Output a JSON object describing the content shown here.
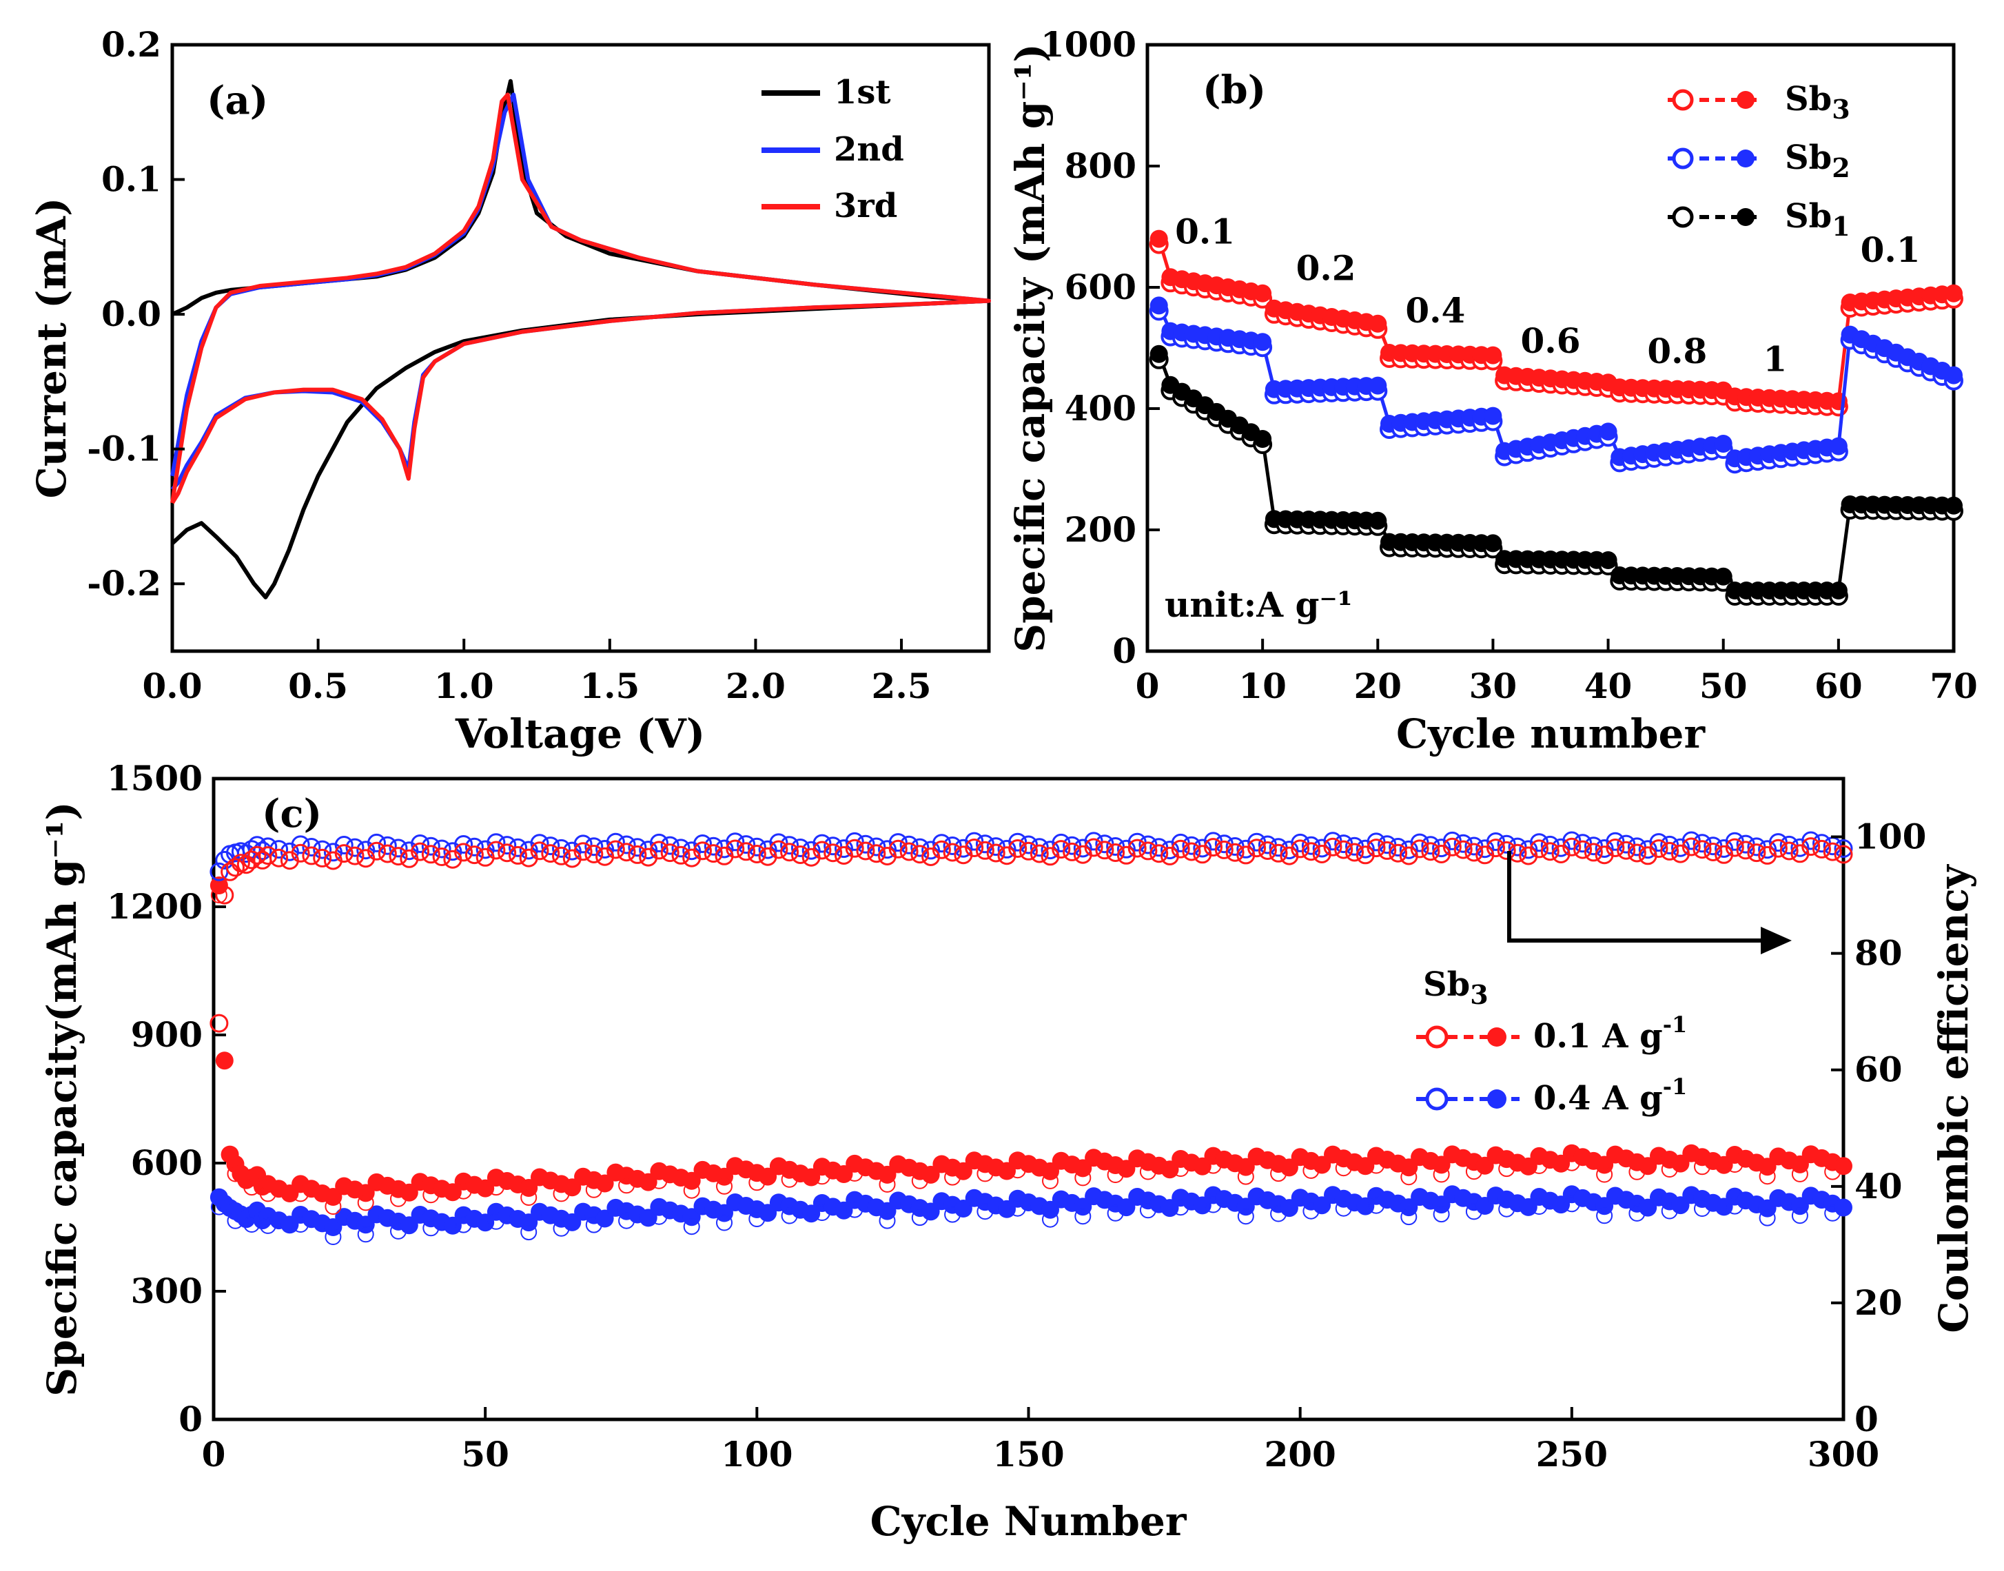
{
  "chart_data": [
    {
      "panel": "(a)",
      "type": "line",
      "title": "",
      "xlabel": "Voltage (V)",
      "ylabel": "Current (mA)",
      "xlim": [
        0.0,
        2.8
      ],
      "ylim": [
        -0.25,
        0.2
      ],
      "xticks": [
        "0.0",
        "0.5",
        "1.0",
        "1.5",
        "2.0",
        "2.5"
      ],
      "xtick_values": [
        0,
        0.5,
        1.0,
        1.5,
        2.0,
        2.5
      ],
      "yticks": [
        "-0.2",
        "-0.1",
        "0.0",
        "0.1",
        "0.2"
      ],
      "ytick_values": [
        -0.2,
        -0.1,
        0.0,
        0.1,
        0.2
      ],
      "legend_position": "top-right",
      "series": [
        {
          "name": "1st",
          "color": "#000000",
          "x": [
            0.0,
            0.05,
            0.1,
            0.15,
            0.2,
            0.3,
            0.4,
            0.5,
            0.6,
            0.7,
            0.8,
            0.9,
            1.0,
            1.05,
            1.1,
            1.13,
            1.16,
            1.2,
            1.25,
            1.35,
            1.5,
            1.8,
            2.2,
            2.6,
            2.8,
            2.6,
            2.2,
            1.8,
            1.5,
            1.2,
            1.0,
            0.9,
            0.8,
            0.7,
            0.6,
            0.55,
            0.5,
            0.45,
            0.4,
            0.35,
            0.32,
            0.28,
            0.22,
            0.15,
            0.1,
            0.05,
            0.0
          ],
          "y": [
            0.0,
            0.005,
            0.012,
            0.016,
            0.018,
            0.02,
            0.022,
            0.024,
            0.026,
            0.028,
            0.033,
            0.042,
            0.058,
            0.075,
            0.105,
            0.145,
            0.173,
            0.11,
            0.075,
            0.058,
            0.045,
            0.032,
            0.022,
            0.013,
            0.01,
            0.008,
            0.004,
            0.0,
            -0.004,
            -0.012,
            -0.02,
            -0.028,
            -0.04,
            -0.055,
            -0.08,
            -0.1,
            -0.12,
            -0.145,
            -0.175,
            -0.2,
            -0.21,
            -0.2,
            -0.18,
            -0.165,
            -0.155,
            -0.16,
            -0.17
          ]
        },
        {
          "name": "2nd",
          "color": "#1f2fff",
          "x": [
            0.0,
            0.05,
            0.1,
            0.15,
            0.2,
            0.3,
            0.4,
            0.5,
            0.6,
            0.7,
            0.8,
            0.9,
            1.0,
            1.05,
            1.1,
            1.14,
            1.17,
            1.22,
            1.3,
            1.4,
            1.6,
            1.8,
            2.2,
            2.6,
            2.8,
            2.6,
            2.2,
            1.8,
            1.5,
            1.2,
            1.0,
            0.9,
            0.86,
            0.83,
            0.81,
            0.78,
            0.72,
            0.65,
            0.55,
            0.45,
            0.35,
            0.25,
            0.15,
            0.1,
            0.05,
            0.02,
            0.0
          ],
          "y": [
            -0.12,
            -0.06,
            -0.02,
            0.005,
            0.015,
            0.02,
            0.022,
            0.024,
            0.026,
            0.029,
            0.034,
            0.044,
            0.06,
            0.078,
            0.11,
            0.15,
            0.163,
            0.1,
            0.065,
            0.055,
            0.042,
            0.032,
            0.022,
            0.014,
            0.01,
            0.008,
            0.005,
            0.001,
            -0.005,
            -0.013,
            -0.022,
            -0.035,
            -0.045,
            -0.08,
            -0.115,
            -0.1,
            -0.08,
            -0.065,
            -0.058,
            -0.057,
            -0.058,
            -0.062,
            -0.075,
            -0.095,
            -0.112,
            -0.125,
            -0.13
          ]
        },
        {
          "name": "3rd",
          "color": "#ff1a1a",
          "x": [
            0.0,
            0.05,
            0.1,
            0.15,
            0.2,
            0.3,
            0.4,
            0.5,
            0.6,
            0.7,
            0.8,
            0.9,
            1.0,
            1.05,
            1.1,
            1.13,
            1.15,
            1.2,
            1.3,
            1.4,
            1.6,
            1.8,
            2.2,
            2.6,
            2.8,
            2.6,
            2.2,
            1.8,
            1.5,
            1.2,
            1.0,
            0.9,
            0.86,
            0.83,
            0.81,
            0.78,
            0.72,
            0.65,
            0.55,
            0.45,
            0.35,
            0.25,
            0.15,
            0.1,
            0.05,
            0.02,
            0.0
          ],
          "y": [
            -0.14,
            -0.07,
            -0.025,
            0.005,
            0.016,
            0.021,
            0.023,
            0.025,
            0.027,
            0.03,
            0.035,
            0.045,
            0.062,
            0.08,
            0.115,
            0.158,
            0.163,
            0.1,
            0.065,
            0.055,
            0.042,
            0.032,
            0.022,
            0.014,
            0.01,
            0.008,
            0.005,
            0.001,
            -0.005,
            -0.013,
            -0.022,
            -0.035,
            -0.047,
            -0.085,
            -0.122,
            -0.1,
            -0.078,
            -0.063,
            -0.056,
            -0.056,
            -0.058,
            -0.063,
            -0.077,
            -0.098,
            -0.117,
            -0.133,
            -0.14
          ]
        }
      ]
    },
    {
      "panel": "(b)",
      "type": "scatter",
      "title": "",
      "xlabel": "Cycle number",
      "ylabel": "Specific capacity (mAh g⁻¹)",
      "xlim": [
        0,
        70
      ],
      "ylim": [
        0,
        1000
      ],
      "xticks": [
        "0",
        "10",
        "20",
        "30",
        "40",
        "50",
        "60",
        "70"
      ],
      "xtick_values": [
        0,
        10,
        20,
        30,
        40,
        50,
        60,
        70
      ],
      "yticks": [
        "0",
        "200",
        "400",
        "600",
        "800",
        "1000"
      ],
      "ytick_values": [
        0,
        200,
        400,
        600,
        800,
        1000
      ],
      "legend_position": "top-right",
      "unit_note": "unit:A g⁻¹",
      "rate_labels": [
        {
          "text": "0.1",
          "x": 5,
          "y": 672
        },
        {
          "text": "0.2",
          "x": 15.5,
          "y": 612
        },
        {
          "text": "0.4",
          "x": 25,
          "y": 542
        },
        {
          "text": "0.6",
          "x": 35,
          "y": 492
        },
        {
          "text": "0.8",
          "x": 46,
          "y": 475
        },
        {
          "text": "1",
          "x": 54.5,
          "y": 462
        },
        {
          "text": "0.1",
          "x": 64.5,
          "y": 642
        }
      ],
      "series": [
        {
          "name": "Sb3",
          "legend_main": "Sb",
          "legend_sub": "3",
          "color": "#ff1a1a",
          "segments": [
            {
              "x": [
                1,
                10
              ],
              "y": [
                620,
                590
              ],
              "first": 680
            },
            {
              "x": [
                11,
                20
              ],
              "y": [
                565,
                540
              ]
            },
            {
              "x": [
                21,
                30
              ],
              "y": [
                492,
                488
              ]
            },
            {
              "x": [
                31,
                40
              ],
              "y": [
                455,
                443
              ]
            },
            {
              "x": [
                41,
                50
              ],
              "y": [
                435,
                430
              ]
            },
            {
              "x": [
                51,
                60
              ],
              "y": [
                420,
                412
              ]
            },
            {
              "x": [
                61,
                70
              ],
              "y": [
                575,
                590
              ]
            }
          ]
        },
        {
          "name": "Sb2",
          "legend_main": "Sb",
          "legend_sub": "2",
          "color": "#1f2fff",
          "segments": [
            {
              "x": [
                1,
                10
              ],
              "y": [
                530,
                510
              ],
              "first": 570
            },
            {
              "x": [
                11,
                20
              ],
              "y": [
                432,
                438
              ]
            },
            {
              "x": [
                21,
                30
              ],
              "y": [
                375,
                388
              ]
            },
            {
              "x": [
                31,
                40
              ],
              "y": [
                330,
                362
              ]
            },
            {
              "x": [
                41,
                50
              ],
              "y": [
                320,
                342
              ]
            },
            {
              "x": [
                51,
                60
              ],
              "y": [
                318,
                338
              ]
            },
            {
              "x": [
                61,
                70
              ],
              "y": [
                522,
                455
              ]
            }
          ]
        },
        {
          "name": "Sb1",
          "legend_main": "Sb",
          "legend_sub": "1",
          "color": "#000000",
          "segments": [
            {
              "x": [
                1,
                10
              ],
              "y": [
                450,
                350
              ],
              "first": 490
            },
            {
              "x": [
                11,
                20
              ],
              "y": [
                218,
                215
              ]
            },
            {
              "x": [
                21,
                30
              ],
              "y": [
                180,
                178
              ]
            },
            {
              "x": [
                31,
                40
              ],
              "y": [
                152,
                150
              ]
            },
            {
              "x": [
                41,
                50
              ],
              "y": [
                125,
                123
              ]
            },
            {
              "x": [
                51,
                60
              ],
              "y": [
                100,
                100
              ]
            },
            {
              "x": [
                61,
                70
              ],
              "y": [
                242,
                240
              ]
            }
          ]
        }
      ]
    },
    {
      "panel": "(c)",
      "type": "scatter",
      "title": "",
      "xlabel": "Cycle Number",
      "ylabel": "Specific capacity(mAh g⁻¹)",
      "y2label": "Coulombic efficiency",
      "xlim": [
        0,
        300
      ],
      "ylim": [
        0,
        1500
      ],
      "y2lim": [
        0,
        110
      ],
      "xticks": [
        "0",
        "50",
        "100",
        "150",
        "200",
        "250",
        "300"
      ],
      "xtick_values": [
        0,
        50,
        100,
        150,
        200,
        250,
        300
      ],
      "yticks": [
        "0",
        "300",
        "600",
        "900",
        "1200",
        "1500"
      ],
      "ytick_values": [
        0,
        300,
        600,
        900,
        1200,
        1500
      ],
      "y2ticks": [
        "0",
        "20",
        "40",
        "60",
        "80",
        "100"
      ],
      "y2tick_values": [
        0,
        20,
        40,
        60,
        80,
        100
      ],
      "legend_title": "Sb",
      "legend_title_sub": "3",
      "legend_position": "center-right",
      "series": [
        {
          "name": "0.1 A g⁻¹",
          "legend_label": "0.1 A g",
          "legend_sup": "-1",
          "color": "#ff1a1a",
          "axis": "left",
          "x": [
            1,
            2,
            3,
            5,
            10,
            20,
            30,
            50,
            70,
            90,
            100,
            125,
            150,
            175,
            200,
            225,
            250,
            275,
            300
          ],
          "y": [
            1250,
            840,
            620,
            575,
            545,
            535,
            540,
            550,
            560,
            575,
            580,
            585,
            595,
            600,
            605,
            605,
            608,
            608,
            605
          ]
        },
        {
          "name": "0.4 A g⁻¹",
          "legend_label": "0.4 A g",
          "legend_sup": "-1",
          "color": "#1f2fff",
          "axis": "left",
          "x": [
            1,
            2,
            3,
            5,
            10,
            20,
            30,
            50,
            70,
            90,
            100,
            125,
            150,
            175,
            200,
            225,
            250,
            275,
            300
          ],
          "y": [
            520,
            505,
            495,
            480,
            470,
            465,
            465,
            470,
            478,
            490,
            495,
            500,
            505,
            510,
            510,
            512,
            512,
            510,
            508
          ]
        },
        {
          "name": "CE 0.1 A g⁻¹",
          "color": "#ff1a1a",
          "axis": "right",
          "x": [
            1,
            2,
            3,
            5,
            10,
            30,
            60,
            100,
            150,
            200,
            250,
            300
          ],
          "y": [
            68,
            90,
            94,
            95.5,
            96.5,
            96.8,
            97,
            97.2,
            97.4,
            97.5,
            97.5,
            97.6
          ]
        },
        {
          "name": "CE 0.4 A g⁻¹",
          "color": "#1f2fff",
          "axis": "right",
          "x": [
            1,
            2,
            3,
            5,
            10,
            30,
            60,
            100,
            150,
            200,
            250,
            300
          ],
          "y": [
            94,
            96,
            97,
            97.5,
            98,
            98.2,
            98.3,
            98.4,
            98.5,
            98.5,
            98.6,
            98.6
          ]
        }
      ]
    }
  ]
}
